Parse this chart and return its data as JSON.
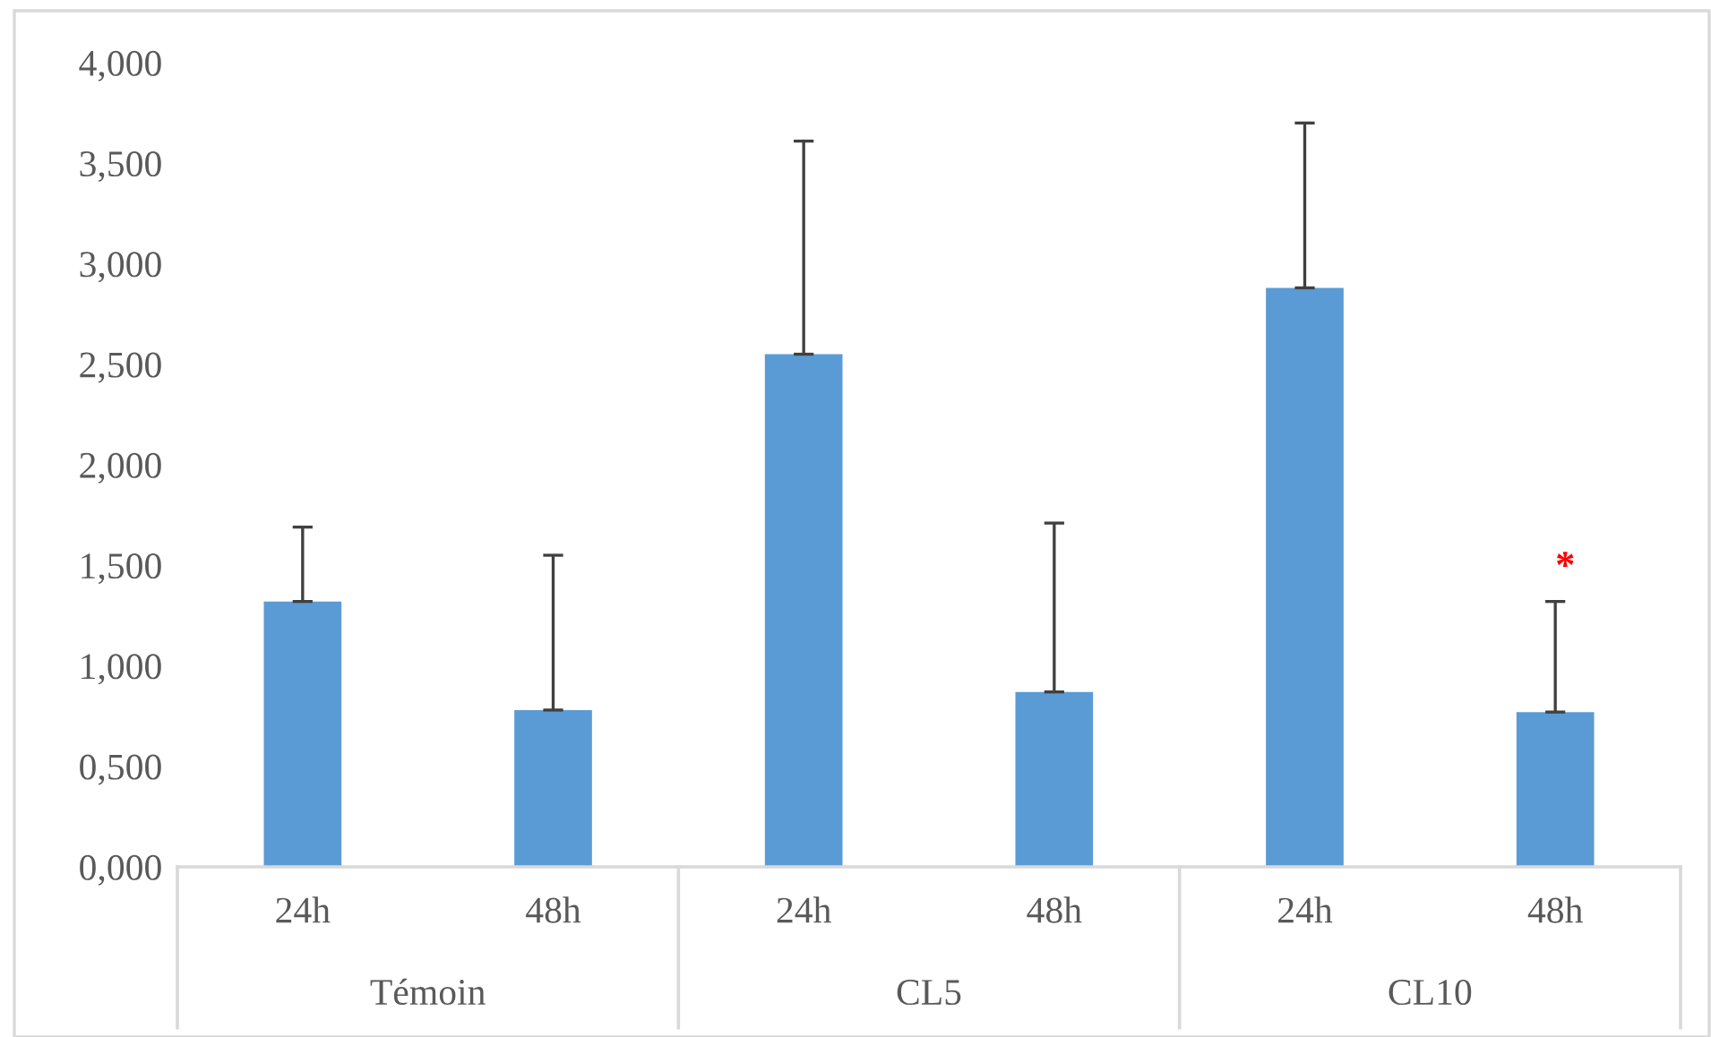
{
  "chart_data": {
    "type": "bar",
    "categories": [
      "24h",
      "48h",
      "24h",
      "48h",
      "24h",
      "48h"
    ],
    "values": [
      1.32,
      0.78,
      2.55,
      0.87,
      2.88,
      0.77
    ],
    "errors": [
      [
        1.32,
        1.69
      ],
      [
        0.78,
        1.55
      ],
      [
        2.55,
        3.61
      ],
      [
        0.87,
        1.71
      ],
      [
        2.88,
        3.7
      ],
      [
        0.77,
        1.32
      ]
    ],
    "color": "#5b9bd5",
    "annotations": [
      "Témoin",
      "CL5",
      "CL10",
      {
        "text": "*",
        "y": 1.32
      }
    ],
    "ylim": [
      0,
      4
    ],
    "yticks": [
      {
        "value": 0,
        "label": "0,000"
      },
      {
        "value": 0.5,
        "label": "0,500"
      },
      {
        "value": 1,
        "label": "1,000"
      },
      {
        "value": 1.5,
        "label": "1,500"
      },
      {
        "value": 2,
        "label": "2,000"
      },
      {
        "value": 2.5,
        "label": "2,500"
      },
      {
        "value": 3,
        "label": "3,000"
      },
      {
        "value": 3.5,
        "label": "3,500"
      },
      {
        "value": 4,
        "label": "4,000"
      }
    ],
    "grid": false,
    "legend": false
  }
}
